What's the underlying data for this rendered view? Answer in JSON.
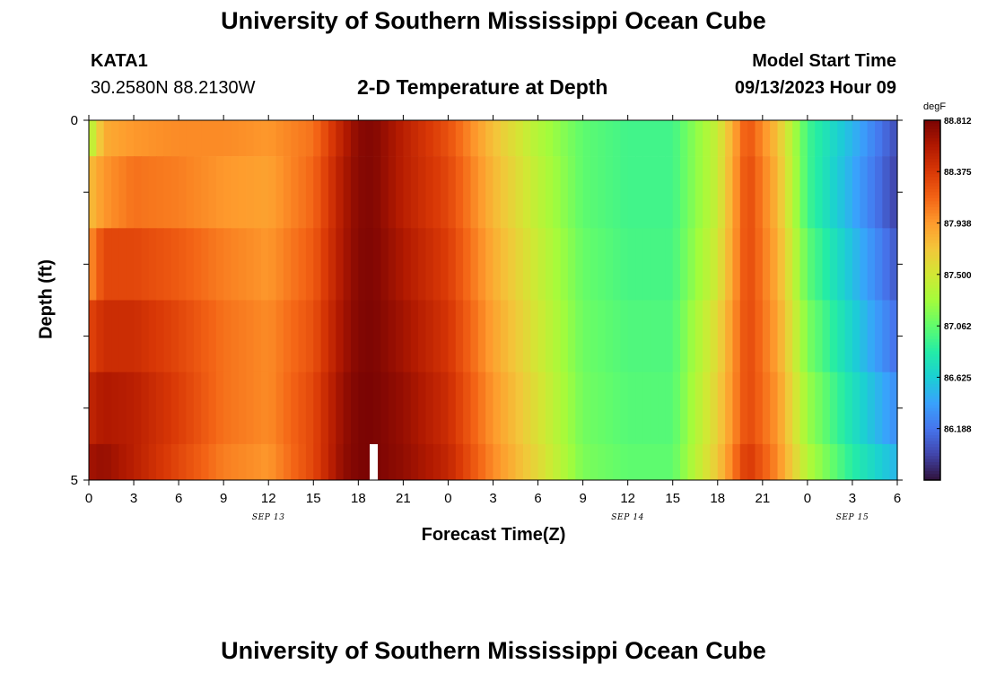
{
  "header": {
    "title": "University of Southern Mississippi Ocean Cube",
    "station": "KATA1",
    "coords": "30.2580N  88.2130W",
    "subtitle": "2-D Temperature at Depth",
    "model_label": "Model Start Time",
    "model_time": "09/13/2023 Hour 09"
  },
  "footer": {
    "title": "University of Southern Mississippi Ocean Cube"
  },
  "chart_data": {
    "type": "heatmap",
    "title": "2-D Temperature at Depth",
    "xlabel": "Forecast Time(Z)",
    "ylabel": "Depth (ft)",
    "x_tick_labels": [
      "0",
      "3",
      "6",
      "9",
      "12",
      "15",
      "18",
      "21",
      "0",
      "3",
      "6",
      "9",
      "12",
      "15",
      "18",
      "21",
      "0",
      "3",
      "6"
    ],
    "x_date_labels": [
      {
        "label": "SEP 13",
        "at_hour": 12
      },
      {
        "label": "SEP 14",
        "at_hour": 36
      },
      {
        "label": "SEP 15",
        "at_hour": 51
      }
    ],
    "y_tick_labels": [
      "0",
      "5"
    ],
    "xlim_hours": [
      0,
      54
    ],
    "ylim_ft": [
      0,
      5
    ],
    "depth_levels_ft": [
      0,
      1,
      2,
      3,
      4,
      5
    ],
    "colorbar": {
      "unit": "degF",
      "min": 85.75,
      "max": 88.812,
      "tick_labels": [
        "88.812",
        "88.375",
        "87.938",
        "87.500",
        "87.062",
        "86.625",
        "86.188"
      ],
      "colors": [
        "#30123b",
        "#4145ab",
        "#4675ed",
        "#39a2fc",
        "#1bcfd4",
        "#24eca6",
        "#61fc6c",
        "#a4fc3b",
        "#d1e834",
        "#f3c63a",
        "#fe9b2d",
        "#f36315",
        "#d93806",
        "#b11901",
        "#7a0403"
      ]
    },
    "depth_rows": [
      {
        "depth_ft": "0-0.5",
        "hours": [
          0,
          1,
          3,
          6,
          9,
          12,
          15,
          17,
          18,
          19,
          21,
          24,
          27,
          30,
          33,
          36,
          39,
          42,
          44,
          46,
          48,
          51,
          54
        ],
        "values": [
          87.3,
          87.85,
          87.95,
          88.0,
          88.0,
          87.95,
          88.1,
          88.55,
          88.75,
          88.78,
          88.55,
          88.25,
          87.75,
          87.35,
          87.05,
          86.95,
          86.95,
          87.45,
          88.25,
          87.75,
          86.95,
          86.5,
          86.0
        ]
      },
      {
        "depth_ft": "0.5-1.5",
        "hours": [
          0,
          1,
          3,
          6,
          9,
          12,
          15,
          17,
          18,
          19,
          21,
          24,
          27,
          30,
          33,
          36,
          39,
          42,
          44,
          46,
          48,
          51,
          54
        ],
        "values": [
          87.75,
          87.95,
          88.1,
          88.05,
          87.95,
          87.9,
          88.15,
          88.6,
          88.76,
          88.78,
          88.55,
          88.3,
          87.8,
          87.4,
          87.05,
          86.95,
          86.95,
          87.45,
          88.3,
          87.8,
          86.95,
          86.45,
          85.95
        ]
      },
      {
        "depth_ft": "1.5-2.5",
        "hours": [
          0,
          1,
          3,
          6,
          9,
          12,
          15,
          17,
          18,
          19,
          21,
          24,
          27,
          30,
          33,
          36,
          39,
          42,
          44,
          46,
          48,
          51,
          54
        ],
        "values": [
          87.95,
          88.3,
          88.3,
          88.2,
          88.05,
          87.95,
          88.2,
          88.62,
          88.77,
          88.79,
          88.6,
          88.35,
          87.85,
          87.45,
          87.08,
          86.97,
          86.97,
          87.5,
          88.3,
          87.85,
          87.05,
          86.55,
          86.05
        ]
      },
      {
        "depth_ft": "2.5-3.5",
        "hours": [
          0,
          1,
          3,
          6,
          9,
          12,
          15,
          17,
          18,
          19,
          21,
          24,
          27,
          30,
          33,
          36,
          39,
          42,
          44,
          46,
          48,
          51,
          54
        ],
        "values": [
          88.3,
          88.45,
          88.45,
          88.3,
          88.1,
          88.0,
          88.25,
          88.65,
          88.78,
          88.8,
          88.65,
          88.4,
          87.9,
          87.5,
          87.1,
          87.0,
          87.0,
          87.6,
          88.3,
          87.9,
          87.15,
          86.65,
          86.15
        ]
      },
      {
        "depth_ft": "3.5-4.5",
        "hours": [
          0,
          1,
          3,
          6,
          9,
          12,
          15,
          17,
          18,
          19,
          21,
          24,
          27,
          30,
          33,
          36,
          39,
          42,
          44,
          46,
          48,
          51,
          54
        ],
        "values": [
          88.5,
          88.6,
          88.55,
          88.35,
          88.1,
          88.0,
          88.3,
          88.7,
          88.8,
          88.81,
          88.7,
          88.45,
          87.95,
          87.55,
          87.12,
          87.02,
          87.02,
          87.65,
          88.3,
          87.95,
          87.25,
          86.75,
          86.3
        ]
      },
      {
        "depth_ft": "4.5-5",
        "hours": [
          0,
          1,
          3,
          6,
          9,
          12,
          15,
          17,
          18,
          19,
          21,
          24,
          27,
          30,
          33,
          36,
          39,
          42,
          44,
          46,
          48,
          51,
          54
        ],
        "values": [
          88.65,
          88.7,
          88.55,
          88.3,
          88.05,
          87.95,
          88.3,
          88.72,
          88.8,
          88.81,
          88.72,
          88.5,
          88.0,
          87.6,
          87.15,
          87.05,
          87.05,
          87.7,
          88.4,
          88.0,
          87.35,
          86.85,
          86.5
        ]
      }
    ]
  }
}
